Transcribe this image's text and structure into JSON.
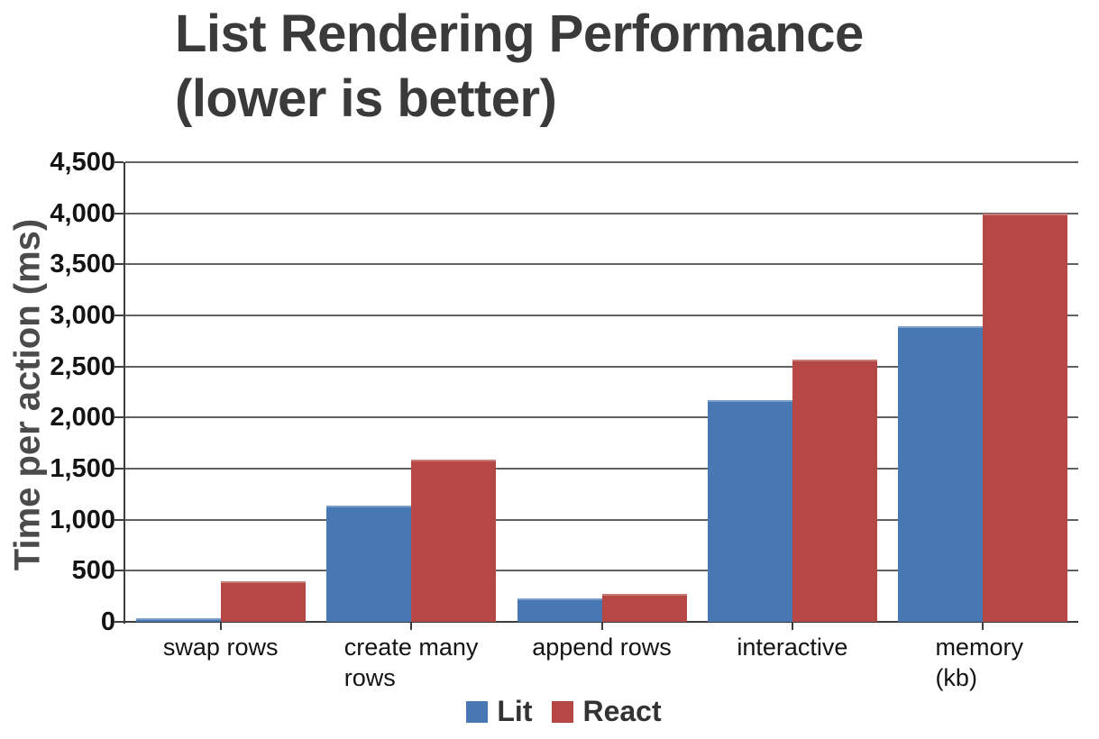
{
  "title": "List Rendering Performance\n(lower is better)",
  "chart_data": {
    "type": "bar",
    "title": "List Rendering Performance (lower is better)",
    "xlabel": "",
    "ylabel": "Time per action (ms)",
    "categories": [
      "swap rows",
      "create many\nrows",
      "append rows",
      "interactive",
      "memory (kb)"
    ],
    "series": [
      {
        "name": "Lit",
        "color": "#4878b4",
        "values": [
          35,
          1140,
          230,
          2170,
          2890
        ]
      },
      {
        "name": "React",
        "color": "#b54845",
        "values": [
          400,
          1590,
          270,
          2570,
          4000
        ]
      }
    ],
    "ylim": [
      0,
      4500
    ],
    "ytick_step": 500,
    "ytick_labels": [
      "0",
      "500",
      "1,000",
      "1,500",
      "2,000",
      "2,500",
      "3,000",
      "3,500",
      "4,000",
      "4,500"
    ],
    "grid": true,
    "legend_position": "bottom",
    "grid_color": "#616161",
    "axis_color": "#3d3d3d"
  }
}
